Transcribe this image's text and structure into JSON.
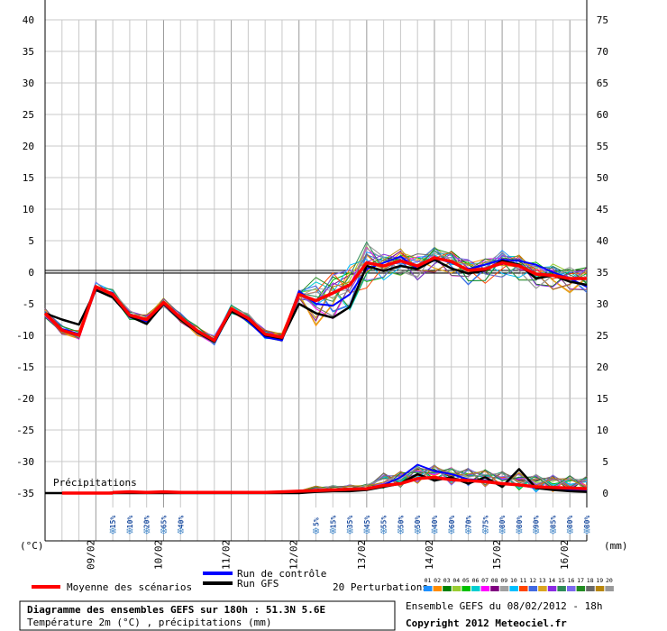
{
  "chart_data": {
    "type": "line",
    "y_left_ticks": [
      "40",
      "35",
      "30",
      "25",
      "20",
      "15",
      "10",
      "5",
      "0",
      "-5",
      "-10",
      "-15",
      "-20",
      "-25",
      "-30",
      "-35"
    ],
    "y_right_ticks": [
      "75",
      "70",
      "65",
      "60",
      "55",
      "50",
      "45",
      "40",
      "35",
      "30",
      "25",
      "20",
      "15",
      "10",
      "5",
      "0"
    ],
    "y_left_unit": "(°C)",
    "y_right_unit": "(mm)",
    "x_dates": [
      "09/02",
      "10/02",
      "11/02",
      "12/02",
      "13/02",
      "14/02",
      "15/02",
      "16/02"
    ],
    "precip_label": "Précipitations",
    "snow_probabilities": [
      {
        "h": 24,
        "p": "15%"
      },
      {
        "h": 30,
        "p": "10%"
      },
      {
        "h": 36,
        "p": "20%"
      },
      {
        "h": 42,
        "p": "65%"
      },
      {
        "h": 48,
        "p": "40%"
      },
      {
        "h": 96,
        "p": "5%"
      },
      {
        "h": 102,
        "p": "15%"
      },
      {
        "h": 108,
        "p": "35%"
      },
      {
        "h": 114,
        "p": "45%"
      },
      {
        "h": 120,
        "p": "55%"
      },
      {
        "h": 126,
        "p": "50%"
      },
      {
        "h": 132,
        "p": "50%"
      },
      {
        "h": 138,
        "p": "40%"
      },
      {
        "h": 144,
        "p": "60%"
      },
      {
        "h": 150,
        "p": "70%"
      },
      {
        "h": 156,
        "p": "75%"
      },
      {
        "h": 162,
        "p": "80%"
      },
      {
        "h": 168,
        "p": "80%"
      },
      {
        "h": 174,
        "p": "90%"
      },
      {
        "h": 180,
        "p": "85%"
      },
      {
        "h": 186,
        "p": "80%"
      },
      {
        "h": 192,
        "p": "80%"
      }
    ],
    "hours": [
      0,
      6,
      12,
      18,
      24,
      30,
      36,
      42,
      48,
      54,
      60,
      66,
      72,
      78,
      84,
      90,
      96,
      102,
      108,
      114,
      120,
      126,
      132,
      138,
      144,
      150,
      156,
      162,
      168,
      174,
      180,
      186,
      192
    ],
    "series": [
      {
        "name": "Moyenne des scénarios",
        "color": "#ff0000",
        "temperature": [
          -6.5,
          -9.2,
          -10,
          -2.3,
          -3.5,
          -6.8,
          -7.5,
          -4.8,
          -7.2,
          -9.3,
          -10.8,
          -5.8,
          -7.3,
          -9.8,
          -10.3,
          -3.5,
          -4.5,
          -3.3,
          -2,
          1.5,
          1,
          1.8,
          1,
          2.3,
          1.7,
          0.3,
          0.5,
          1.5,
          1,
          -0.3,
          -0.5,
          -1,
          -1
        ],
        "precip": [
          0,
          0,
          0,
          0,
          0.1,
          0.2,
          0.1,
          0.2,
          0.1,
          0.1,
          0.1,
          0.1,
          0.1,
          0.1,
          0.2,
          0.3,
          0.4,
          0.5,
          0.6,
          0.7,
          1.2,
          1.5,
          2.3,
          2.5,
          2.1,
          2,
          1.8,
          1.5,
          1.3,
          1,
          0.9,
          0.8,
          0.7
        ]
      },
      {
        "name": "Run GFS",
        "color": "#000000",
        "temperature": [
          -6.5,
          -7.5,
          -8.3,
          -2.8,
          -4,
          -7,
          -8.2,
          -5,
          -7.5,
          -9.5,
          -11,
          -6.2,
          -7.5,
          -10,
          -10.5,
          -5,
          -6.5,
          -7.2,
          -5.5,
          1,
          0.2,
          1,
          0.5,
          2,
          0.6,
          -0.2,
          0.3,
          1.8,
          1.2,
          -1,
          -0.5,
          -1.5,
          -2
        ],
        "precip": [
          0,
          0,
          0,
          0,
          0,
          0,
          0,
          0,
          0,
          0,
          0,
          0,
          0,
          0,
          0,
          0,
          0.2,
          0.3,
          0.3,
          0.5,
          1,
          1.5,
          3,
          2,
          2.5,
          1.5,
          2.5,
          1,
          3.8,
          0.8,
          0.5,
          0.3,
          0.2
        ]
      },
      {
        "name": "Run de contrôle",
        "color": "#0000ff",
        "temperature": [
          -6.5,
          -9,
          -9.8,
          -2.5,
          -3.3,
          -7,
          -7.8,
          -5.1,
          -7.2,
          -9.5,
          -10.7,
          -6,
          -7.8,
          -10.3,
          -10.8,
          -3,
          -5,
          -5.3,
          -3.5,
          0.5,
          1.5,
          2.5,
          0.5,
          2.3,
          1.5,
          0.5,
          1.2,
          2,
          1.8,
          1.2,
          0,
          -1,
          -2.3
        ],
        "precip": [
          0,
          0,
          0,
          0,
          0,
          0,
          0,
          0,
          0,
          0,
          0,
          0,
          0,
          0,
          0,
          0,
          0.5,
          0.3,
          0.5,
          0.6,
          1.3,
          2.5,
          4.5,
          3.5,
          3,
          2.2,
          2,
          1.5,
          1.3,
          0.8,
          0.6,
          0.5,
          0.4
        ]
      }
    ],
    "legend": [
      "Run de contrôle",
      "Run GFS",
      "Moyenne des scénarios",
      "20 Perturbations"
    ],
    "perturbation_numbers": [
      "01",
      "02",
      "03",
      "04",
      "05",
      "06",
      "07",
      "08",
      "09",
      "10",
      "11",
      "12",
      "13",
      "14",
      "15",
      "16",
      "17",
      "18",
      "19",
      "20"
    ],
    "perturbation_colors": [
      "#1e90ff",
      "#ff8c00",
      "#008000",
      "#9acd32",
      "#00c000",
      "#00ced1",
      "#ff00ff",
      "#800080",
      "#a0a0a0",
      "#00bfff",
      "#ff4500",
      "#4169e1",
      "#daa520",
      "#8a2be2",
      "#2e8b57",
      "#7b68ee",
      "#228b22",
      "#696969",
      "#b8860b",
      "#999999"
    ]
  },
  "footer": {
    "title": "Diagramme des ensembles GEFS sur 180h : 51.3N 5.6E",
    "subtitle": "Température 2m (°C) , précipitations (mm)",
    "run_info": "Ensemble GEFS du 08/02/2012 - 18h",
    "copyright": "Copyright 2012 Meteociel.fr"
  }
}
